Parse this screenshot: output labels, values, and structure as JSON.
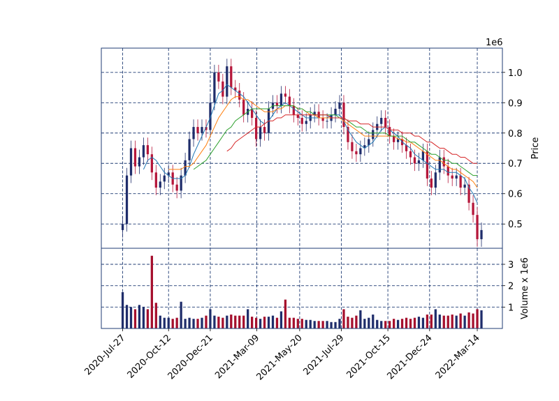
{
  "chart_data": {
    "type": "candlestick",
    "colors": {
      "frame": "#1f3b73",
      "grid": "#1f3b73",
      "up_candle": "#1f2d6b",
      "down_candle": "#b5163a",
      "up_volume": "#1f2d6b",
      "down_volume": "#a50f2d",
      "ma_1": "#1f77b4",
      "ma_2": "#ff7f0e",
      "ma_3": "#2ca02c",
      "ma_4": "#d62728"
    },
    "price_panel": {
      "ylabel": "Price",
      "offset_label": "1e6",
      "yticks": [
        0.5,
        0.6,
        0.7,
        0.8,
        0.9,
        1.0
      ],
      "ylim": [
        0.42,
        1.08
      ],
      "grid": true
    },
    "volume_panel": {
      "ylabel": "Volume x 1e6",
      "yticks": [
        1,
        2,
        3
      ],
      "ylim": [
        0,
        3.75
      ],
      "grid": true
    },
    "x_axis": {
      "date_range": [
        "2020-07-24",
        "2022-03-21"
      ],
      "ticks": [
        "2020-Jul-27",
        "2020-Oct-12",
        "2020-Dec-21",
        "2021-Mar-09",
        "2021-May-20",
        "2021-Jul-29",
        "2021-Oct-15",
        "2021-Dec-24",
        "2022-Mar-14"
      ]
    },
    "price_series": {
      "dates": [
        "2020-07-27",
        "2020-08-03",
        "2020-08-10",
        "2020-08-17",
        "2020-08-24",
        "2020-08-31",
        "2020-09-07",
        "2020-09-14",
        "2020-09-21",
        "2020-09-28",
        "2020-10-05",
        "2020-10-12",
        "2020-10-19",
        "2020-10-26",
        "2020-11-02",
        "2020-11-09",
        "2020-11-16",
        "2020-11-23",
        "2020-11-30",
        "2020-12-07",
        "2020-12-14",
        "2020-12-21",
        "2020-12-28",
        "2021-01-04",
        "2021-01-11",
        "2021-01-18",
        "2021-01-25",
        "2021-02-01",
        "2021-02-08",
        "2021-02-15",
        "2021-02-22",
        "2021-03-01",
        "2021-03-08",
        "2021-03-15",
        "2021-03-22",
        "2021-03-29",
        "2021-04-05",
        "2021-04-12",
        "2021-04-19",
        "2021-04-26",
        "2021-05-03",
        "2021-05-10",
        "2021-05-17",
        "2021-05-24",
        "2021-05-31",
        "2021-06-07",
        "2021-06-14",
        "2021-06-21",
        "2021-06-28",
        "2021-07-05",
        "2021-07-12",
        "2021-07-19",
        "2021-07-26",
        "2021-08-02",
        "2021-08-09",
        "2021-08-16",
        "2021-08-23",
        "2021-08-30",
        "2021-09-06",
        "2021-09-13",
        "2021-09-20",
        "2021-09-27",
        "2021-10-04",
        "2021-10-11",
        "2021-10-18",
        "2021-10-25",
        "2021-11-01",
        "2021-11-08",
        "2021-11-15",
        "2021-11-22",
        "2021-11-29",
        "2021-12-06",
        "2021-12-13",
        "2021-12-20",
        "2021-12-27",
        "2022-01-03",
        "2022-01-10",
        "2022-01-17",
        "2022-01-24",
        "2022-01-31",
        "2022-02-07",
        "2022-02-14",
        "2022-02-21",
        "2022-02-28",
        "2022-03-07",
        "2022-03-14",
        "2022-03-21"
      ],
      "close": [
        0.5,
        0.66,
        0.75,
        0.69,
        0.72,
        0.76,
        0.73,
        0.67,
        0.62,
        0.64,
        0.66,
        0.67,
        0.63,
        0.61,
        0.66,
        0.71,
        0.78,
        0.82,
        0.8,
        0.82,
        0.81,
        0.9,
        1.0,
        0.97,
        0.92,
        1.02,
        0.95,
        0.94,
        0.91,
        0.86,
        0.88,
        0.85,
        0.78,
        0.82,
        0.8,
        0.88,
        0.9,
        0.89,
        0.93,
        0.92,
        0.89,
        0.86,
        0.85,
        0.83,
        0.84,
        0.86,
        0.87,
        0.85,
        0.84,
        0.84,
        0.86,
        0.88,
        0.9,
        0.82,
        0.77,
        0.74,
        0.73,
        0.75,
        0.76,
        0.78,
        0.81,
        0.83,
        0.85,
        0.82,
        0.79,
        0.77,
        0.78,
        0.76,
        0.74,
        0.72,
        0.7,
        0.71,
        0.74,
        0.65,
        0.62,
        0.67,
        0.72,
        0.69,
        0.66,
        0.65,
        0.66,
        0.62,
        0.63,
        0.57,
        0.53,
        0.45,
        0.48
      ],
      "moving_averages": [
        {
          "values": [
            null,
            null,
            null,
            null,
            null,
            0.68,
            0.71,
            0.72,
            0.71,
            0.69,
            0.67,
            0.66,
            0.65,
            0.65,
            0.65,
            0.66,
            0.69,
            0.73,
            0.76,
            0.79,
            0.82,
            0.85,
            0.89,
            0.93,
            0.94,
            0.96,
            0.95,
            0.94,
            0.93,
            0.92,
            0.9,
            0.88,
            0.86,
            0.84,
            0.83,
            0.84,
            0.86,
            0.88,
            0.89,
            0.9,
            0.89,
            0.88,
            0.87,
            0.86,
            0.85,
            0.85,
            0.85,
            0.85,
            0.85,
            0.85,
            0.86,
            0.86,
            0.86,
            0.84,
            0.81,
            0.79,
            0.77,
            0.76,
            0.75,
            0.76,
            0.77,
            0.79,
            0.81,
            0.82,
            0.81,
            0.8,
            0.79,
            0.77,
            0.76,
            0.75,
            0.73,
            0.72,
            0.71,
            0.7,
            0.69,
            0.68,
            0.68,
            0.68,
            0.67,
            0.67,
            0.67,
            0.66,
            0.65,
            0.62,
            0.6,
            0.57,
            null
          ]
        },
        {
          "values": [
            null,
            null,
            null,
            null,
            null,
            null,
            null,
            null,
            null,
            null,
            null,
            0.68,
            0.68,
            0.68,
            0.68,
            0.69,
            0.69,
            0.7,
            0.72,
            0.74,
            0.76,
            0.79,
            0.82,
            0.85,
            0.87,
            0.89,
            0.91,
            0.92,
            0.92,
            0.91,
            0.91,
            0.9,
            0.89,
            0.88,
            0.87,
            0.87,
            0.87,
            0.88,
            0.88,
            0.89,
            0.89,
            0.89,
            0.88,
            0.88,
            0.87,
            0.86,
            0.86,
            0.85,
            0.85,
            0.85,
            0.85,
            0.85,
            0.85,
            0.84,
            0.83,
            0.82,
            0.81,
            0.8,
            0.79,
            0.79,
            0.79,
            0.79,
            0.79,
            0.79,
            0.79,
            0.79,
            0.78,
            0.78,
            0.77,
            0.77,
            0.76,
            0.75,
            0.74,
            0.73,
            0.72,
            0.71,
            0.71,
            0.7,
            0.69,
            0.68,
            0.68,
            0.67,
            0.66,
            0.65,
            0.64,
            0.62,
            null
          ]
        },
        {
          "values": [
            null,
            null,
            null,
            null,
            null,
            null,
            null,
            null,
            null,
            null,
            null,
            null,
            null,
            null,
            null,
            null,
            null,
            0.68,
            0.69,
            0.7,
            0.71,
            0.73,
            0.75,
            0.77,
            0.79,
            0.81,
            0.82,
            0.84,
            0.85,
            0.86,
            0.87,
            0.88,
            0.88,
            0.88,
            0.88,
            0.88,
            0.89,
            0.89,
            0.89,
            0.89,
            0.89,
            0.89,
            0.88,
            0.88,
            0.87,
            0.87,
            0.86,
            0.86,
            0.86,
            0.86,
            0.86,
            0.86,
            0.85,
            0.85,
            0.84,
            0.83,
            0.82,
            0.82,
            0.81,
            0.8,
            0.8,
            0.8,
            0.8,
            0.8,
            0.79,
            0.79,
            0.79,
            0.79,
            0.78,
            0.77,
            0.77,
            0.76,
            0.75,
            0.74,
            0.73,
            0.73,
            0.72,
            0.71,
            0.71,
            0.7,
            0.7,
            0.69,
            0.68,
            0.67,
            0.66,
            0.66,
            null
          ]
        },
        {
          "values": [
            null,
            null,
            null,
            null,
            null,
            null,
            null,
            null,
            null,
            null,
            null,
            null,
            null,
            null,
            null,
            null,
            null,
            null,
            null,
            null,
            null,
            null,
            null,
            null,
            null,
            0.74,
            0.75,
            0.77,
            0.78,
            0.79,
            0.8,
            0.81,
            0.82,
            0.82,
            0.83,
            0.84,
            0.84,
            0.85,
            0.85,
            0.86,
            0.86,
            0.86,
            0.86,
            0.86,
            0.86,
            0.86,
            0.86,
            0.86,
            0.86,
            0.86,
            0.85,
            0.85,
            0.85,
            0.85,
            0.84,
            0.84,
            0.84,
            0.83,
            0.83,
            0.83,
            0.82,
            0.82,
            0.82,
            0.82,
            0.81,
            0.81,
            0.81,
            0.8,
            0.8,
            0.8,
            0.79,
            0.79,
            0.78,
            0.77,
            0.77,
            0.76,
            0.75,
            0.75,
            0.74,
            0.73,
            0.73,
            0.72,
            0.72,
            0.71,
            0.7,
            0.7,
            null
          ]
        }
      ]
    },
    "volume_series": {
      "values": [
        1.7,
        1.1,
        1.0,
        0.9,
        1.1,
        1.0,
        0.9,
        3.4,
        1.2,
        0.6,
        0.5,
        0.5,
        0.45,
        0.5,
        1.25,
        0.45,
        0.5,
        0.45,
        0.45,
        0.5,
        0.6,
        0.9,
        0.6,
        0.55,
        0.5,
        0.6,
        0.65,
        0.6,
        0.6,
        0.6,
        0.9,
        0.55,
        0.5,
        0.45,
        0.55,
        0.55,
        0.6,
        0.5,
        0.8,
        1.35,
        0.5,
        0.5,
        0.45,
        0.45,
        0.4,
        0.4,
        0.35,
        0.35,
        0.35,
        0.35,
        0.3,
        0.3,
        0.45,
        0.9,
        0.55,
        0.5,
        0.6,
        0.85,
        0.45,
        0.5,
        0.65,
        0.4,
        0.35,
        0.35,
        0.35,
        0.45,
        0.4,
        0.45,
        0.5,
        0.45,
        0.5,
        0.55,
        0.5,
        0.65,
        0.65,
        0.9,
        0.65,
        0.6,
        0.6,
        0.65,
        0.6,
        0.7,
        0.6,
        0.75,
        0.7,
        0.9,
        0.85
      ]
    }
  }
}
